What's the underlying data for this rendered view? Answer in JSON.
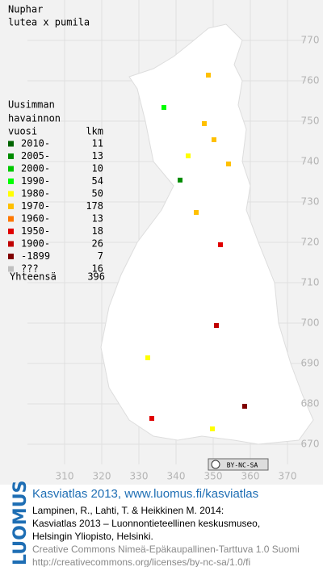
{
  "title": [
    "Nuphar",
    "lutea x pumila"
  ],
  "legend": {
    "heading": [
      "Uusimman",
      "havainnon",
      "vuosi"
    ],
    "count_heading": "lkm",
    "rows": [
      {
        "label": "2010-",
        "count": 11,
        "color": "#006400"
      },
      {
        "label": "2005-",
        "count": 13,
        "color": "#008c00"
      },
      {
        "label": "2000-",
        "count": 10,
        "color": "#00c800"
      },
      {
        "label": "1990-",
        "count": 54,
        "color": "#00ff00"
      },
      {
        "label": "1980-",
        "count": 50,
        "color": "#ffff00"
      },
      {
        "label": "1970-",
        "count": 178,
        "color": "#ffc000"
      },
      {
        "label": "1960-",
        "count": 13,
        "color": "#ff7800"
      },
      {
        "label": "1950-",
        "count": 18,
        "color": "#e00000"
      },
      {
        "label": "1900-",
        "count": 26,
        "color": "#c00000"
      },
      {
        "label": "-1899",
        "count": 7,
        "color": "#800000"
      },
      {
        "label": "???",
        "count": 16,
        "color": "#c0c0c0"
      }
    ],
    "total_label": "Yhteensä",
    "total": 396
  },
  "map": {
    "xlim": [
      300,
      375
    ],
    "ylim": [
      665,
      780
    ],
    "xticks": [
      310,
      320,
      330,
      340,
      350,
      360,
      370
    ],
    "yticks": [
      670,
      680,
      690,
      700,
      710,
      720,
      730,
      740,
      750,
      760,
      770
    ]
  },
  "license_badge": "BY-NC-SA",
  "footer": {
    "brand": "LUOMUS",
    "site": "Kasviatlas 2013, www.luomus.fi/kasviatlas",
    "citation": [
      "Lampinen, R., Lahti, T. & Heikkinen M. 2014:",
      "Kasviatlas 2013 – Luonnontieteellinen keskusmuseo,",
      "Helsingin Yliopisto, Helsinki."
    ],
    "license": [
      "Creative Commons Nimeä-Epäkaupallinen-Tarttuva 1.0 Suomi",
      "http://creativecommons.org/licenses/by-nc-sa/1.0/fi"
    ]
  }
}
